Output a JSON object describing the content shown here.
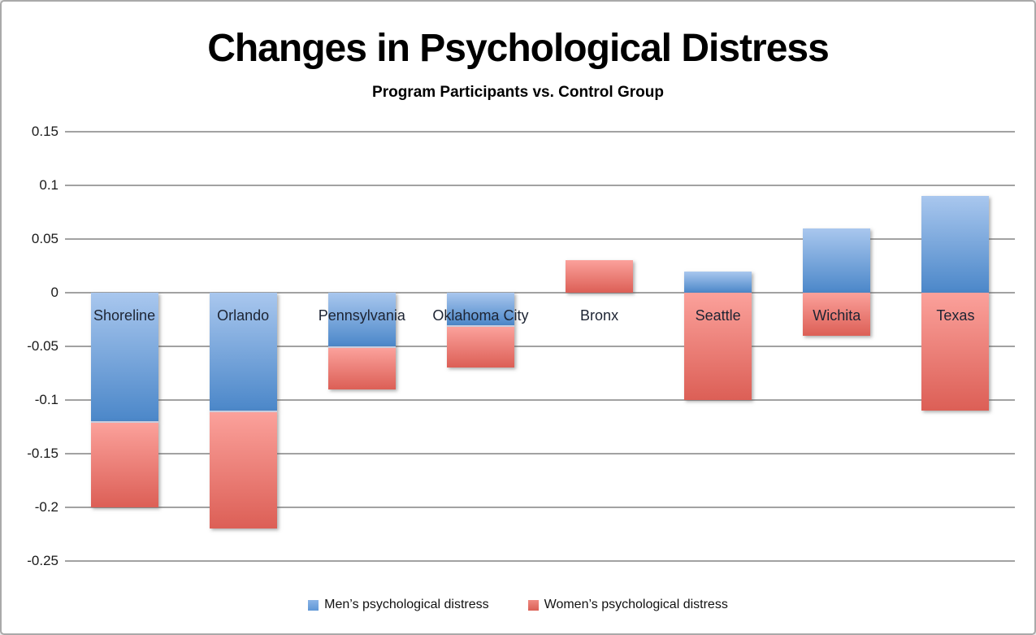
{
  "window": {
    "background": "#ffffff",
    "border_color": "#a9a9a9"
  },
  "header": {
    "title": "Changes in Psychological Distress",
    "subtitle": "Program Participants vs. Control Group"
  },
  "chart_data": {
    "type": "bar",
    "stacked": true,
    "title": "Changes in Psychological Distress",
    "subtitle": "Program Participants vs. Control Group",
    "categories": [
      "Shoreline",
      "Orlando",
      "Pennsylvania",
      "Oklahoma City",
      "Bronx",
      "Seattle",
      "Wichita",
      "Texas"
    ],
    "series": [
      {
        "name": "Men’s psychological distress",
        "values": [
          -0.12,
          -0.11,
          -0.05,
          -0.03,
          0,
          0.02,
          0.06,
          0.09
        ],
        "color_top": "#a9c7ee",
        "color_bottom": "#4b87c9"
      },
      {
        "name": "Women’s psychological distress",
        "values": [
          -0.08,
          -0.11,
          -0.04,
          -0.04,
          0.03,
          -0.1,
          -0.04,
          -0.11
        ],
        "color_top": "#fba19b",
        "color_bottom": "#dc5f56"
      }
    ],
    "y_axis": {
      "min": -0.25,
      "max": 0.15,
      "step": 0.05,
      "tick_labels": [
        "0.15",
        "0.1",
        "0.05",
        "0",
        "-0.05",
        "-0.1",
        "-0.15",
        "-0.2",
        "-0.25"
      ]
    },
    "grid": true,
    "gridline_color": "#a2a2a2",
    "legend_position": "bottom"
  },
  "legend": {
    "men_label": "Men’s psychological distress",
    "women_label": "Women’s psychological distress",
    "men_color": "#6fa2dc",
    "women_color": "#e2675d"
  }
}
